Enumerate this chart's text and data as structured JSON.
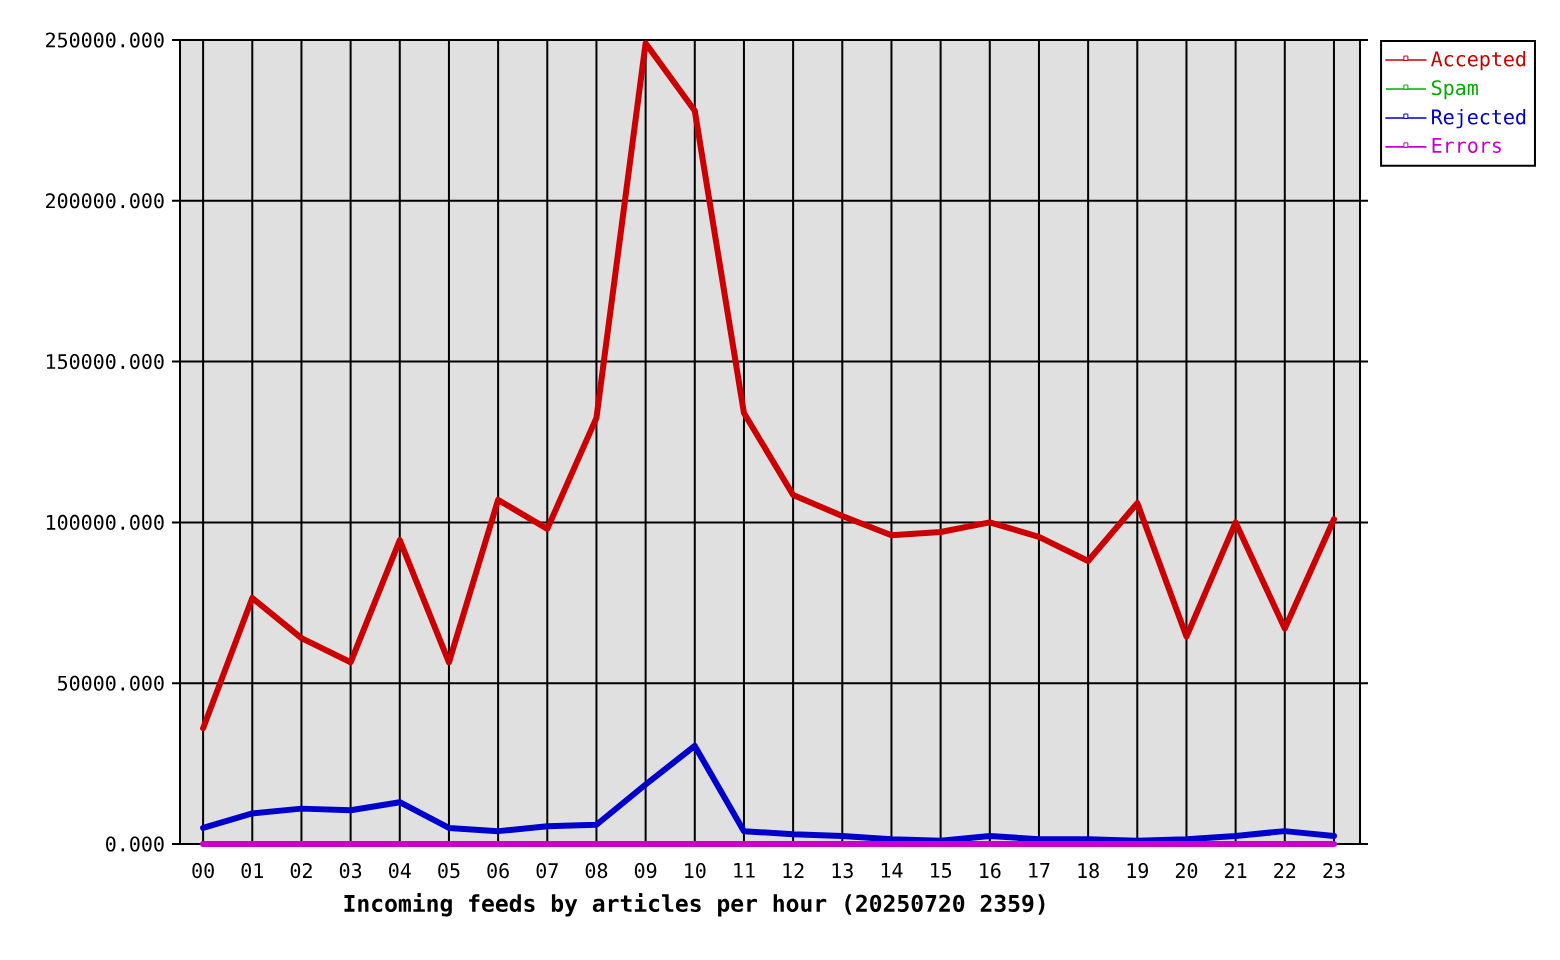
{
  "chart_data": {
    "type": "line",
    "categories": [
      "00",
      "01",
      "02",
      "03",
      "04",
      "05",
      "06",
      "07",
      "08",
      "09",
      "10",
      "11",
      "12",
      "13",
      "14",
      "15",
      "16",
      "17",
      "18",
      "19",
      "20",
      "21",
      "22",
      "23"
    ],
    "series": [
      {
        "name": "Accepted",
        "color": "#cc0000",
        "values": [
          36000,
          76500,
          64000,
          56500,
          94500,
          56500,
          107000,
          98000,
          132500,
          249000,
          228000,
          134000,
          108500,
          102000,
          96000,
          97000,
          100000,
          95500,
          88000,
          106000,
          64500,
          100000,
          67000,
          101000
        ]
      },
      {
        "name": "Spam",
        "color": "#00aa00",
        "values": [
          null,
          null,
          null,
          null,
          null,
          null,
          null,
          null,
          null,
          null,
          null,
          null,
          null,
          null,
          null,
          null,
          null,
          null,
          null,
          null,
          null,
          null,
          null,
          null
        ]
      },
      {
        "name": "Rejected",
        "color": "#0000cc",
        "values": [
          5000,
          9500,
          11000,
          10500,
          13000,
          5000,
          4000,
          5500,
          6000,
          18500,
          30500,
          4000,
          3000,
          2500,
          1500,
          1000,
          2500,
          1500,
          1500,
          1000,
          1500,
          2500,
          4000,
          2500
        ]
      },
      {
        "name": "Errors",
        "color": "#cc00cc",
        "values": [
          0,
          0,
          0,
          0,
          0,
          0,
          0,
          0,
          0,
          0,
          0,
          0,
          0,
          0,
          0,
          0,
          0,
          0,
          0,
          0,
          0,
          0,
          0,
          0
        ]
      }
    ],
    "xlabel": "Incoming feeds by articles per hour (20250720 2359)",
    "ylim": [
      0,
      250000
    ],
    "yticks": [
      {
        "value": 0,
        "label": "0.000"
      },
      {
        "value": 50000,
        "label": "50000.000"
      },
      {
        "value": 100000,
        "label": "100000.000"
      },
      {
        "value": 150000,
        "label": "150000.000"
      },
      {
        "value": 200000,
        "label": "200000.000"
      },
      {
        "value": 250000,
        "label": "250000.000"
      }
    ],
    "grid": true,
    "legend": "top right"
  }
}
